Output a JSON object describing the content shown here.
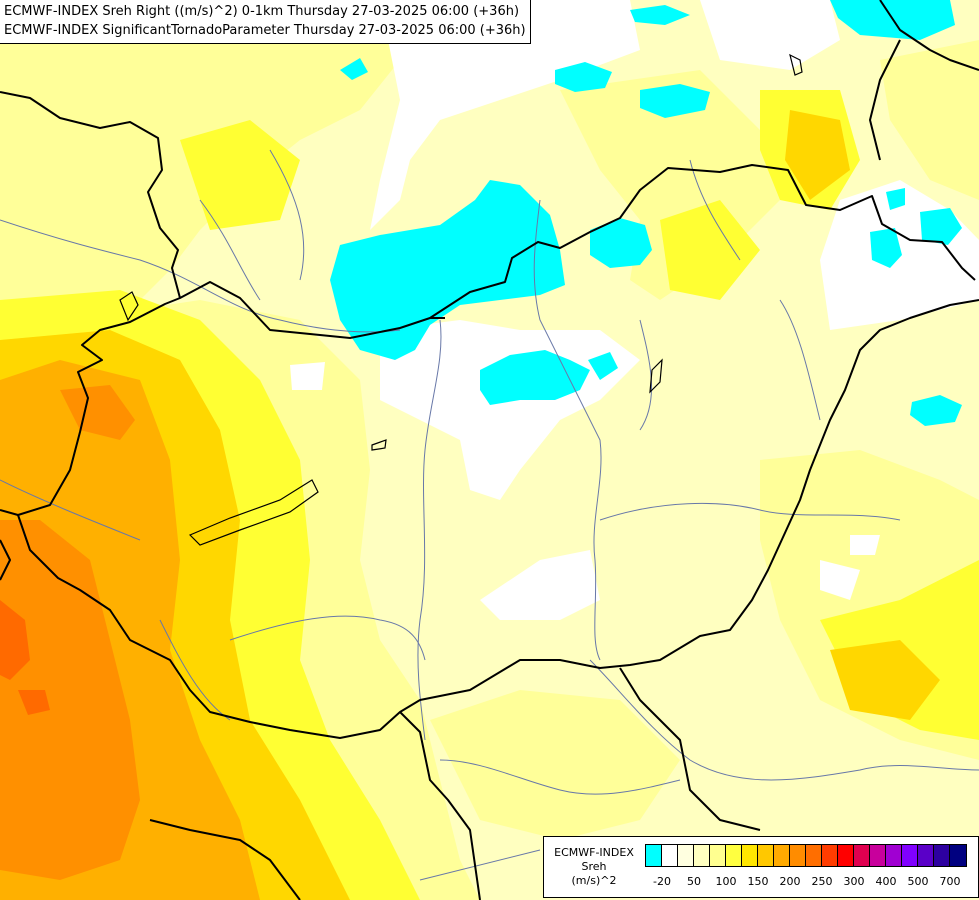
{
  "header": {
    "line1": "ECMWF-INDEX Sreh Right ((m/s)^2) 0-1km Thursday 27-03-2025 06:00 (+36h)",
    "line2": "ECMWF-INDEX SignificantTornadoParameter Thursday 27-03-2025 06:00 (+36h)"
  },
  "legend": {
    "title_line1": "ECMWF-INDEX",
    "title_line2": "Sreh",
    "title_line3": "(m/s)^2",
    "swatch_colors": [
      "#00ffff",
      "#ffffff",
      "#ffffe0",
      "#ffffc0",
      "#ffff90",
      "#ffff40",
      "#ffe600",
      "#ffc800",
      "#ffaa00",
      "#ff8c00",
      "#ff6e00",
      "#ff3c00",
      "#ff0000",
      "#e00050",
      "#c8009c",
      "#a000d2",
      "#8000ff",
      "#5a00c8",
      "#2d00a0",
      "#000080"
    ],
    "tick_labels": [
      "-20",
      "50",
      "100",
      "150",
      "200",
      "250",
      "300",
      "400",
      "500",
      "700"
    ]
  },
  "fill_colors": {
    "cyan": "#00ffff",
    "white": "#ffffff",
    "pale": "#ffffc0",
    "light": "#ffff99",
    "yellow": "#ffff33",
    "gold": "#ffd700",
    "orange": "#ffb000",
    "deep_orange": "#ff9000",
    "red_orange": "#ff6a00",
    "border": "#000000",
    "river": "#6878a8"
  }
}
